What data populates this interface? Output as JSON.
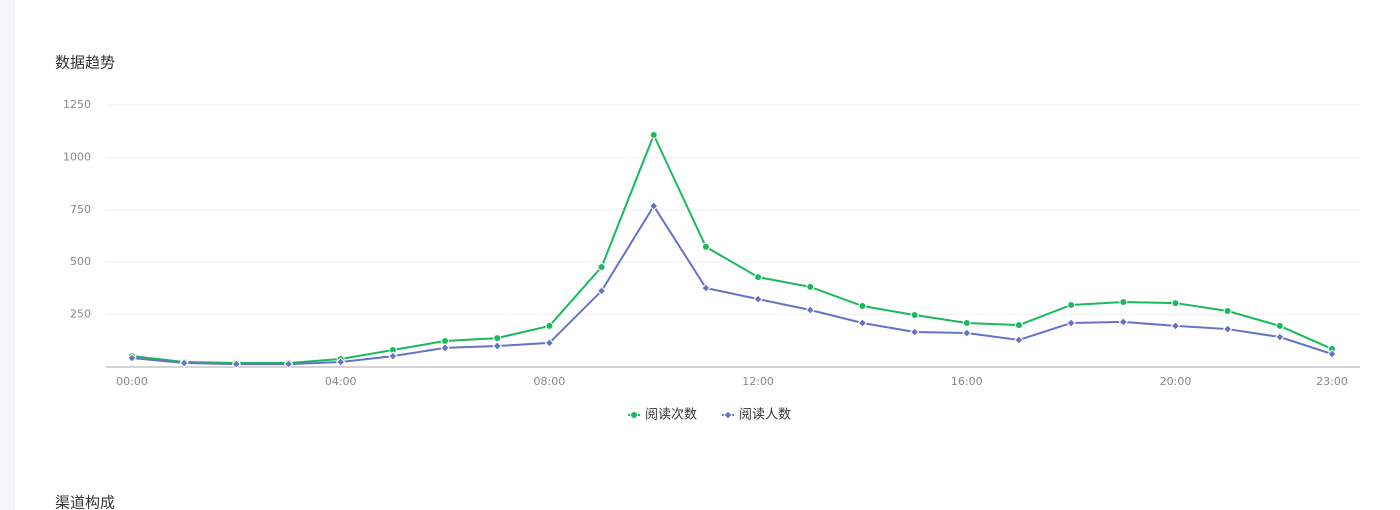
{
  "chart_data": {
    "type": "line",
    "title": "数据趋势",
    "categories": [
      "00:00",
      null,
      null,
      null,
      "04:00",
      null,
      null,
      null,
      "08:00",
      null,
      null,
      null,
      "12:00",
      null,
      null,
      null,
      "16:00",
      null,
      null,
      null,
      "20:00",
      null,
      null,
      "23:00"
    ],
    "series": [
      {
        "name": "阅读次数",
        "color": "#19b95f",
        "marker": "circle",
        "values": [
          52,
          24,
          19,
          19,
          38,
          81,
          124,
          138,
          196,
          477,
          1107,
          573,
          429,
          382,
          291,
          248,
          210,
          200,
          296,
          310,
          305,
          267,
          196,
          86
        ]
      },
      {
        "name": "阅读人数",
        "color": "#6473c4",
        "marker": "diamond",
        "values": [
          43,
          19,
          14,
          14,
          24,
          52,
          91,
          100,
          115,
          363,
          768,
          377,
          324,
          272,
          210,
          167,
          162,
          129,
          210,
          215,
          196,
          181,
          143,
          62
        ]
      }
    ],
    "ylim": [
      0,
      1250
    ],
    "yticks": [
      250,
      500,
      750,
      1000,
      1250
    ],
    "grid": true,
    "legend": "bottom"
  },
  "next_section": {
    "title": "渠道构成"
  }
}
